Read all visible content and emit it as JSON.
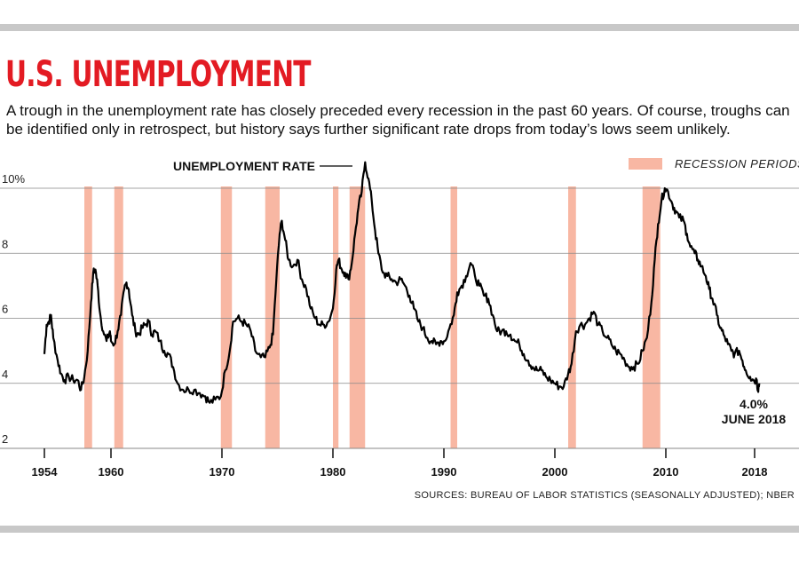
{
  "header": {
    "title": "U.S. UNEMPLOYMENT",
    "subtitle": "A trough in the unemployment rate has closely preceded every recession in the past 60 years. Of course, troughs can be identified only in retrospect, but history says further significant rate drops from today’s lows seem unlikely."
  },
  "colors": {
    "title": "#e31b23",
    "recession": "#f8b7a3",
    "line": "#000000",
    "grid": "#888888"
  },
  "chart_data": {
    "type": "line",
    "title": "U.S. UNEMPLOYMENT",
    "series_label": "UNEMPLOYMENT RATE",
    "legend": {
      "label": "RECESSION PERIODS",
      "position": "top-right"
    },
    "xlim": [
      1954,
      2019
    ],
    "ylim": [
      2,
      10.5
    ],
    "y_ticks": [
      {
        "value": 10,
        "label": "10%"
      },
      {
        "value": 8,
        "label": "8"
      },
      {
        "value": 6,
        "label": "6"
      },
      {
        "value": 4,
        "label": "4"
      },
      {
        "value": 2,
        "label": "2"
      }
    ],
    "x_ticks": [
      {
        "value": 1954,
        "label": "1954"
      },
      {
        "value": 1960,
        "label": "1960"
      },
      {
        "value": 1970,
        "label": "1970"
      },
      {
        "value": 1980,
        "label": "1980"
      },
      {
        "value": 1990,
        "label": "1990"
      },
      {
        "value": 2000,
        "label": "2000"
      },
      {
        "value": 2010,
        "label": "2010"
      },
      {
        "value": 2018,
        "label": "2018"
      }
    ],
    "grid": "horizontal",
    "recessions": [
      [
        1957.6,
        1958.3
      ],
      [
        1960.3,
        1961.1
      ],
      [
        1969.9,
        1970.9
      ],
      [
        1973.9,
        1975.2
      ],
      [
        1980.0,
        1980.5
      ],
      [
        1981.5,
        1982.9
      ],
      [
        1990.6,
        1991.2
      ],
      [
        2001.2,
        2001.9
      ],
      [
        2007.9,
        2009.5
      ]
    ],
    "series": [
      {
        "values": [
          [
            1954.0,
            4.9
          ],
          [
            1954.2,
            5.8
          ],
          [
            1954.4,
            5.9
          ],
          [
            1954.6,
            6.1
          ],
          [
            1954.8,
            5.4
          ],
          [
            1955.2,
            4.7
          ],
          [
            1955.5,
            4.3
          ],
          [
            1955.8,
            4.1
          ],
          [
            1956.2,
            4.2
          ],
          [
            1956.6,
            4.1
          ],
          [
            1957.0,
            4.1
          ],
          [
            1957.3,
            3.8
          ],
          [
            1957.6,
            4.2
          ],
          [
            1957.9,
            5.0
          ],
          [
            1958.2,
            6.5
          ],
          [
            1958.4,
            7.4
          ],
          [
            1958.6,
            7.5
          ],
          [
            1958.8,
            7.0
          ],
          [
            1959.0,
            6.2
          ],
          [
            1959.3,
            5.6
          ],
          [
            1959.6,
            5.3
          ],
          [
            1959.9,
            5.6
          ],
          [
            1960.0,
            5.3
          ],
          [
            1960.3,
            5.2
          ],
          [
            1960.6,
            5.6
          ],
          [
            1960.9,
            6.1
          ],
          [
            1961.2,
            6.9
          ],
          [
            1961.4,
            7.1
          ],
          [
            1961.6,
            6.9
          ],
          [
            1961.9,
            6.1
          ],
          [
            1962.2,
            5.6
          ],
          [
            1962.5,
            5.5
          ],
          [
            1962.8,
            5.7
          ],
          [
            1963.1,
            5.8
          ],
          [
            1963.4,
            5.9
          ],
          [
            1963.7,
            5.5
          ],
          [
            1964.0,
            5.6
          ],
          [
            1964.4,
            5.3
          ],
          [
            1964.8,
            5.0
          ],
          [
            1965.2,
            4.9
          ],
          [
            1965.6,
            4.5
          ],
          [
            1966.0,
            4.0
          ],
          [
            1966.5,
            3.8
          ],
          [
            1967.0,
            3.8
          ],
          [
            1967.5,
            3.8
          ],
          [
            1968.0,
            3.7
          ],
          [
            1968.5,
            3.6
          ],
          [
            1968.9,
            3.4
          ],
          [
            1969.4,
            3.5
          ],
          [
            1969.9,
            3.6
          ],
          [
            1970.3,
            4.4
          ],
          [
            1970.7,
            5.0
          ],
          [
            1971.0,
            5.9
          ],
          [
            1971.4,
            6.0
          ],
          [
            1971.8,
            5.9
          ],
          [
            1972.2,
            5.8
          ],
          [
            1972.6,
            5.6
          ],
          [
            1973.0,
            5.0
          ],
          [
            1973.5,
            4.8
          ],
          [
            1973.9,
            4.8
          ],
          [
            1974.3,
            5.1
          ],
          [
            1974.6,
            5.5
          ],
          [
            1974.9,
            7.2
          ],
          [
            1975.2,
            8.6
          ],
          [
            1975.4,
            9.0
          ],
          [
            1975.7,
            8.4
          ],
          [
            1976.0,
            7.8
          ],
          [
            1976.4,
            7.6
          ],
          [
            1976.8,
            7.8
          ],
          [
            1977.2,
            7.2
          ],
          [
            1977.6,
            6.9
          ],
          [
            1978.0,
            6.3
          ],
          [
            1978.4,
            6.0
          ],
          [
            1978.8,
            5.8
          ],
          [
            1979.2,
            5.8
          ],
          [
            1979.6,
            5.9
          ],
          [
            1980.0,
            6.3
          ],
          [
            1980.3,
            7.5
          ],
          [
            1980.5,
            7.8
          ],
          [
            1980.8,
            7.5
          ],
          [
            1981.1,
            7.4
          ],
          [
            1981.4,
            7.2
          ],
          [
            1981.7,
            7.7
          ],
          [
            1982.0,
            8.6
          ],
          [
            1982.3,
            9.4
          ],
          [
            1982.6,
            9.9
          ],
          [
            1982.9,
            10.8
          ],
          [
            1983.2,
            10.3
          ],
          [
            1983.5,
            9.6
          ],
          [
            1983.8,
            8.7
          ],
          [
            1984.1,
            8.0
          ],
          [
            1984.5,
            7.4
          ],
          [
            1984.9,
            7.3
          ],
          [
            1985.3,
            7.2
          ],
          [
            1985.7,
            7.1
          ],
          [
            1986.1,
            7.2
          ],
          [
            1986.5,
            7.0
          ],
          [
            1986.9,
            6.7
          ],
          [
            1987.3,
            6.3
          ],
          [
            1987.7,
            5.9
          ],
          [
            1988.1,
            5.7
          ],
          [
            1988.5,
            5.4
          ],
          [
            1988.9,
            5.3
          ],
          [
            1989.3,
            5.2
          ],
          [
            1989.7,
            5.3
          ],
          [
            1990.1,
            5.3
          ],
          [
            1990.5,
            5.7
          ],
          [
            1990.9,
            6.1
          ],
          [
            1991.2,
            6.8
          ],
          [
            1991.6,
            7.0
          ],
          [
            1992.0,
            7.3
          ],
          [
            1992.4,
            7.7
          ],
          [
            1992.8,
            7.3
          ],
          [
            1993.2,
            7.0
          ],
          [
            1993.6,
            6.7
          ],
          [
            1994.0,
            6.6
          ],
          [
            1994.4,
            6.1
          ],
          [
            1994.8,
            5.6
          ],
          [
            1995.2,
            5.6
          ],
          [
            1995.6,
            5.6
          ],
          [
            1996.0,
            5.5
          ],
          [
            1996.4,
            5.3
          ],
          [
            1996.8,
            5.2
          ],
          [
            1997.2,
            4.9
          ],
          [
            1997.6,
            4.7
          ],
          [
            1998.0,
            4.5
          ],
          [
            1998.4,
            4.4
          ],
          [
            1998.8,
            4.4
          ],
          [
            1999.2,
            4.2
          ],
          [
            1999.6,
            4.1
          ],
          [
            2000.0,
            4.0
          ],
          [
            2000.4,
            3.9
          ],
          [
            2000.8,
            3.9
          ],
          [
            2001.2,
            4.3
          ],
          [
            2001.5,
            4.6
          ],
          [
            2001.9,
            5.6
          ],
          [
            2002.3,
            5.8
          ],
          [
            2002.7,
            5.8
          ],
          [
            2003.1,
            6.0
          ],
          [
            2003.5,
            6.2
          ],
          [
            2003.9,
            5.8
          ],
          [
            2004.3,
            5.6
          ],
          [
            2004.7,
            5.4
          ],
          [
            2005.1,
            5.2
          ],
          [
            2005.5,
            5.0
          ],
          [
            2005.9,
            4.9
          ],
          [
            2006.3,
            4.7
          ],
          [
            2006.7,
            4.5
          ],
          [
            2007.1,
            4.5
          ],
          [
            2007.5,
            4.6
          ],
          [
            2007.9,
            5.0
          ],
          [
            2008.3,
            5.4
          ],
          [
            2008.7,
            6.5
          ],
          [
            2009.0,
            7.8
          ],
          [
            2009.3,
            8.9
          ],
          [
            2009.6,
            9.6
          ],
          [
            2009.9,
            10.0
          ],
          [
            2010.2,
            9.9
          ],
          [
            2010.6,
            9.5
          ],
          [
            2010.9,
            9.3
          ],
          [
            2011.2,
            9.1
          ],
          [
            2011.6,
            9.0
          ],
          [
            2011.9,
            8.6
          ],
          [
            2012.2,
            8.2
          ],
          [
            2012.6,
            8.0
          ],
          [
            2012.9,
            7.8
          ],
          [
            2013.2,
            7.6
          ],
          [
            2013.6,
            7.3
          ],
          [
            2013.9,
            6.9
          ],
          [
            2014.2,
            6.6
          ],
          [
            2014.6,
            6.1
          ],
          [
            2014.9,
            5.7
          ],
          [
            2015.2,
            5.5
          ],
          [
            2015.6,
            5.2
          ],
          [
            2015.9,
            5.0
          ],
          [
            2016.2,
            4.9
          ],
          [
            2016.6,
            5.0
          ],
          [
            2016.9,
            4.7
          ],
          [
            2017.2,
            4.4
          ],
          [
            2017.6,
            4.2
          ],
          [
            2017.9,
            4.1
          ],
          [
            2018.2,
            4.1
          ],
          [
            2018.3,
            3.8
          ],
          [
            2018.42,
            4.0
          ]
        ]
      }
    ],
    "annotations": {
      "series_label": "UNEMPLOYMENT RATE",
      "end_value": "4.0%",
      "end_date": "JUNE 2018"
    },
    "source": "SOURCES: BUREAU OF LABOR STATISTICS (SEASONALLY ADJUSTED); NBER"
  }
}
